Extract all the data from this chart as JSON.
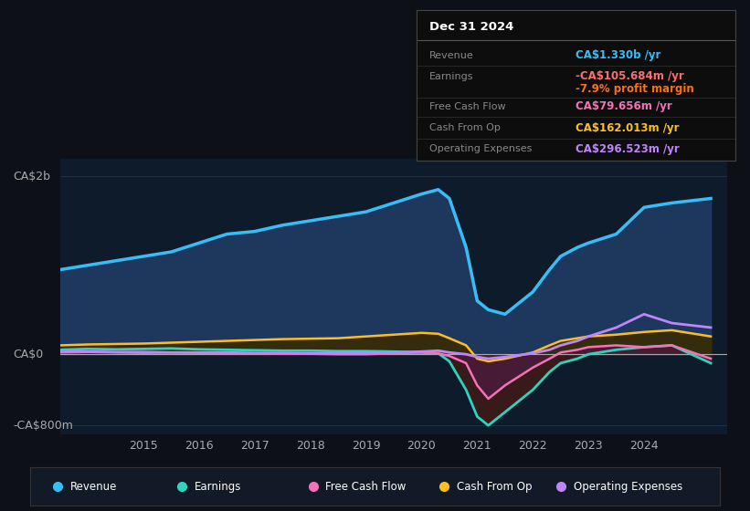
{
  "bg_color": "#0d1117",
  "plot_bg_color": "#0d1b2a",
  "title_box": {
    "date": "Dec 31 2024",
    "rows": [
      {
        "label": "Revenue",
        "value": "CA$1.330b /yr",
        "value_color": "#38bdf8"
      },
      {
        "label": "Earnings",
        "value": "-CA$105.684m /yr",
        "value_color": "#f87171"
      },
      {
        "label": "",
        "value": "-7.9% profit margin",
        "value_color": "#f97316"
      },
      {
        "label": "Free Cash Flow",
        "value": "CA$79.656m /yr",
        "value_color": "#f472b6"
      },
      {
        "label": "Cash From Op",
        "value": "CA$162.013m /yr",
        "value_color": "#fbbf24"
      },
      {
        "label": "Operating Expenses",
        "value": "CA$296.523m /yr",
        "value_color": "#c084fc"
      }
    ]
  },
  "ylabel_top": "CA$2b",
  "ylabel_zero": "CA$0",
  "ylabel_bottom": "-CA$800m",
  "ylim": [
    -900,
    2200
  ],
  "xlim": [
    2013.5,
    2025.5
  ],
  "xtick_labels": [
    "2015",
    "2016",
    "2017",
    "2018",
    "2019",
    "2020",
    "2021",
    "2022",
    "2023",
    "2024"
  ],
  "xtick_positions": [
    2015,
    2016,
    2017,
    2018,
    2019,
    2020,
    2021,
    2022,
    2023,
    2024
  ],
  "legend_items": [
    {
      "label": "Revenue",
      "color": "#38bdf8"
    },
    {
      "label": "Earnings",
      "color": "#2dd4bf"
    },
    {
      "label": "Free Cash Flow",
      "color": "#f472b6"
    },
    {
      "label": "Cash From Op",
      "color": "#fbbf24"
    },
    {
      "label": "Operating Expenses",
      "color": "#c084fc"
    }
  ],
  "revenue": {
    "x": [
      2013.5,
      2014,
      2014.5,
      2015,
      2015.5,
      2016,
      2016.5,
      2017,
      2017.5,
      2018,
      2018.5,
      2019,
      2019.5,
      2020,
      2020.3,
      2020.5,
      2020.8,
      2021.0,
      2021.2,
      2021.5,
      2022,
      2022.3,
      2022.5,
      2022.8,
      2023,
      2023.5,
      2024,
      2024.5,
      2025.2
    ],
    "y": [
      950,
      1000,
      1050,
      1100,
      1150,
      1250,
      1350,
      1380,
      1450,
      1500,
      1550,
      1600,
      1700,
      1800,
      1850,
      1750,
      1200,
      600,
      500,
      450,
      700,
      950,
      1100,
      1200,
      1250,
      1350,
      1650,
      1700,
      1750
    ],
    "color": "#38bdf8",
    "fill_color": "#1e3a5f",
    "lw": 2.5
  },
  "earnings": {
    "x": [
      2013.5,
      2014,
      2014.5,
      2015,
      2015.5,
      2016,
      2016.5,
      2017,
      2017.5,
      2018,
      2018.5,
      2019,
      2019.5,
      2020,
      2020.3,
      2020.5,
      2020.8,
      2021.0,
      2021.2,
      2021.5,
      2022,
      2022.3,
      2022.5,
      2022.8,
      2023,
      2023.5,
      2024,
      2024.5,
      2025.2
    ],
    "y": [
      50,
      60,
      55,
      60,
      65,
      55,
      50,
      45,
      40,
      40,
      35,
      35,
      30,
      20,
      10,
      -80,
      -400,
      -700,
      -800,
      -650,
      -400,
      -200,
      -100,
      -50,
      0,
      50,
      80,
      100,
      -100
    ],
    "color": "#2dd4bf",
    "fill_color": "#3d1a1a",
    "lw": 2.0
  },
  "free_cash_flow": {
    "x": [
      2013.5,
      2014,
      2014.5,
      2015,
      2015.5,
      2016,
      2016.5,
      2017,
      2017.5,
      2018,
      2018.5,
      2019,
      2019.5,
      2020,
      2020.3,
      2020.5,
      2020.8,
      2021.0,
      2021.2,
      2021.5,
      2022,
      2022.3,
      2022.5,
      2022.8,
      2023,
      2023.5,
      2024,
      2024.5,
      2025.2
    ],
    "y": [
      20,
      25,
      20,
      15,
      20,
      15,
      10,
      10,
      5,
      5,
      0,
      0,
      10,
      20,
      10,
      -20,
      -100,
      -350,
      -500,
      -350,
      -150,
      -50,
      20,
      50,
      80,
      100,
      80,
      100,
      -50
    ],
    "color": "#f472b6",
    "fill_color": "#4a1a3a",
    "lw": 1.8
  },
  "cash_from_op": {
    "x": [
      2013.5,
      2014,
      2014.5,
      2015,
      2015.5,
      2016,
      2016.5,
      2017,
      2017.5,
      2018,
      2018.5,
      2019,
      2019.5,
      2020,
      2020.3,
      2020.5,
      2020.8,
      2021.0,
      2021.2,
      2021.5,
      2022,
      2022.3,
      2022.5,
      2022.8,
      2023,
      2023.5,
      2024,
      2024.5,
      2025.2
    ],
    "y": [
      100,
      110,
      115,
      120,
      130,
      140,
      150,
      160,
      170,
      175,
      180,
      200,
      220,
      240,
      230,
      180,
      100,
      -50,
      -80,
      -50,
      20,
      100,
      150,
      180,
      200,
      220,
      250,
      270,
      200
    ],
    "color": "#fbbf24",
    "fill_color": "#3a2a00",
    "lw": 1.8
  },
  "op_expenses": {
    "x": [
      2013.5,
      2014,
      2014.5,
      2015,
      2015.5,
      2016,
      2016.5,
      2017,
      2017.5,
      2018,
      2018.5,
      2019,
      2019.5,
      2020,
      2020.3,
      2020.5,
      2020.8,
      2021.0,
      2021.2,
      2021.5,
      2022,
      2022.3,
      2022.5,
      2022.8,
      2023,
      2023.5,
      2024,
      2024.5,
      2025.2
    ],
    "y": [
      30,
      30,
      25,
      25,
      20,
      20,
      20,
      15,
      15,
      10,
      10,
      10,
      20,
      30,
      40,
      20,
      0,
      -30,
      -50,
      -30,
      10,
      50,
      100,
      150,
      200,
      300,
      450,
      350,
      300
    ],
    "color": "#c084fc",
    "lw": 2.0
  }
}
